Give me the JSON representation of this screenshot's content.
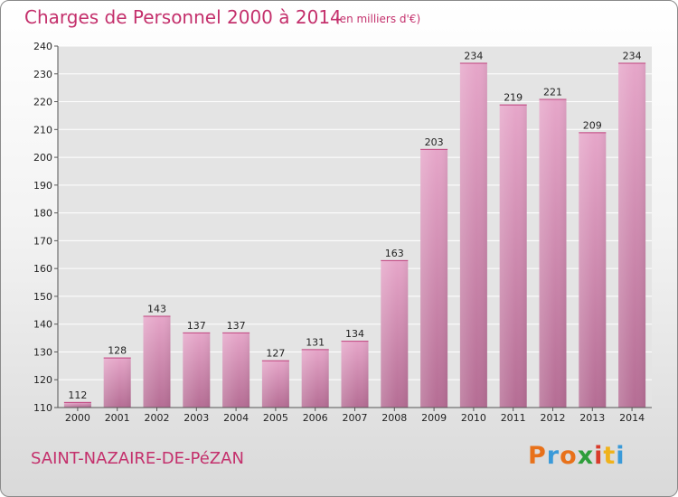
{
  "header": {
    "title": "Charges de Personnel 2000 à 2014",
    "subtitle": "(en milliers d'€)"
  },
  "footer": {
    "commune": "SAINT-NAZAIRE-DE-PéZAN",
    "logo_letters": [
      "P",
      "r",
      "o",
      "x",
      "i",
      "t",
      "i"
    ],
    "logo_colors": [
      "#e8711a",
      "#3a9ad9",
      "#e8711a",
      "#2e9e3b",
      "#d93b2b",
      "#f0b21b",
      "#3a9ad9"
    ]
  },
  "chart_data": {
    "type": "bar",
    "categories": [
      "2000",
      "2001",
      "2002",
      "2003",
      "2004",
      "2005",
      "2006",
      "2007",
      "2008",
      "2009",
      "2010",
      "2011",
      "2012",
      "2013",
      "2014"
    ],
    "values": [
      112,
      128,
      143,
      137,
      137,
      127,
      131,
      134,
      163,
      203,
      234,
      219,
      221,
      209,
      234
    ],
    "title": "Charges de Personnel 2000 à 2014",
    "subtitle": "(en milliers d'€)",
    "xlabel": "",
    "ylabel": "",
    "ylim": [
      110,
      240
    ],
    "yticks": [
      110,
      120,
      130,
      140,
      150,
      160,
      170,
      180,
      190,
      200,
      210,
      220,
      230,
      240
    ],
    "grid": true,
    "bar_color": "#d68bb3"
  }
}
